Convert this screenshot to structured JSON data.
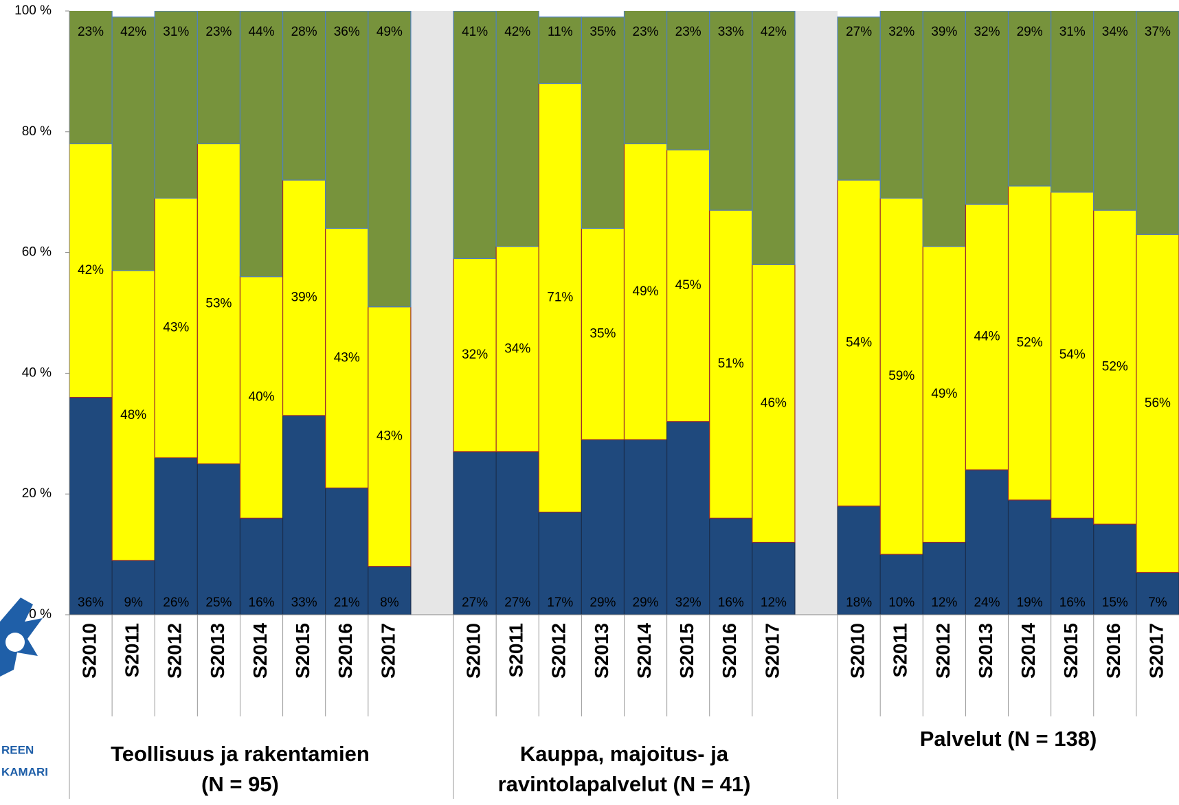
{
  "chart_data": {
    "type": "stacked_bar",
    "ylim": [
      0,
      100
    ],
    "yticks": [
      {
        "value": 0,
        "label": "0 %"
      },
      {
        "value": 20,
        "label": "20 %"
      },
      {
        "value": 40,
        "label": "40 %"
      },
      {
        "value": 60,
        "label": "60 %"
      },
      {
        "value": 80,
        "label": "80 %"
      },
      {
        "value": 100,
        "label": "100 %"
      }
    ],
    "groups": [
      {
        "label": [
          "Teollisuus ja rakentamien",
          "(N = 95)"
        ],
        "categories": [
          "S2010",
          "S2011",
          "S2012",
          "S2013",
          "S2014",
          "S2015",
          "S2016",
          "S2017"
        ]
      },
      {
        "label": [
          "Kauppa, majoitus- ja",
          "ravintolapalvelut (N = 41)"
        ],
        "categories": [
          "S2010",
          "S2011",
          "S2012",
          "S2013",
          "S2014",
          "S2015",
          "S2016",
          "S2017"
        ]
      },
      {
        "label": [
          "Palvelut (N = 138)"
        ],
        "categories": [
          "S2010",
          "S2011",
          "S2012",
          "S2013",
          "S2014",
          "S2015",
          "S2016",
          "S2017"
        ]
      }
    ],
    "series": [
      {
        "color": "#1f497d",
        "values": [
          36,
          9,
          26,
          25,
          16,
          33,
          21,
          8,
          27,
          27,
          17,
          29,
          29,
          32,
          16,
          12,
          18,
          10,
          12,
          24,
          19,
          16,
          15,
          7
        ],
        "value_labels": [
          "36%",
          "9%",
          "26%",
          "25%",
          "16%",
          "33%",
          "21%",
          "8%",
          "27%",
          "27%",
          "17%",
          "29%",
          "29%",
          "32%",
          "16%",
          "12%",
          "18%",
          "10%",
          "12%",
          "24%",
          "19%",
          "16%",
          "15%",
          "7%"
        ]
      },
      {
        "color": "#ffff00",
        "values": [
          42,
          48,
          43,
          53,
          40,
          39,
          43,
          43,
          32,
          34,
          71,
          35,
          49,
          45,
          51,
          46,
          54,
          59,
          49,
          44,
          52,
          54,
          52,
          56
        ],
        "value_labels": [
          "42%",
          "48%",
          "43%",
          "53%",
          "40%",
          "39%",
          "43%",
          "43%",
          "32%",
          "34%",
          "71%",
          "35%",
          "49%",
          "45%",
          "51%",
          "46%",
          "54%",
          "59%",
          "49%",
          "44%",
          "52%",
          "54%",
          "52%",
          "56%"
        ]
      },
      {
        "color": "#77933c",
        "values": [
          23,
          42,
          31,
          23,
          44,
          28,
          36,
          49,
          41,
          42,
          11,
          35,
          23,
          23,
          33,
          42,
          27,
          32,
          39,
          32,
          29,
          31,
          34,
          37
        ],
        "value_labels": [
          "23%",
          "42%",
          "31%",
          "23%",
          "44%",
          "28%",
          "36%",
          "49%",
          "41%",
          "42%",
          "11%",
          "35%",
          "23%",
          "23%",
          "33%",
          "42%",
          "27%",
          "32%",
          "39%",
          "32%",
          "29%",
          "31%",
          "34%",
          "37%"
        ]
      }
    ],
    "logo_text": [
      "REEN",
      "KAMARI"
    ]
  }
}
